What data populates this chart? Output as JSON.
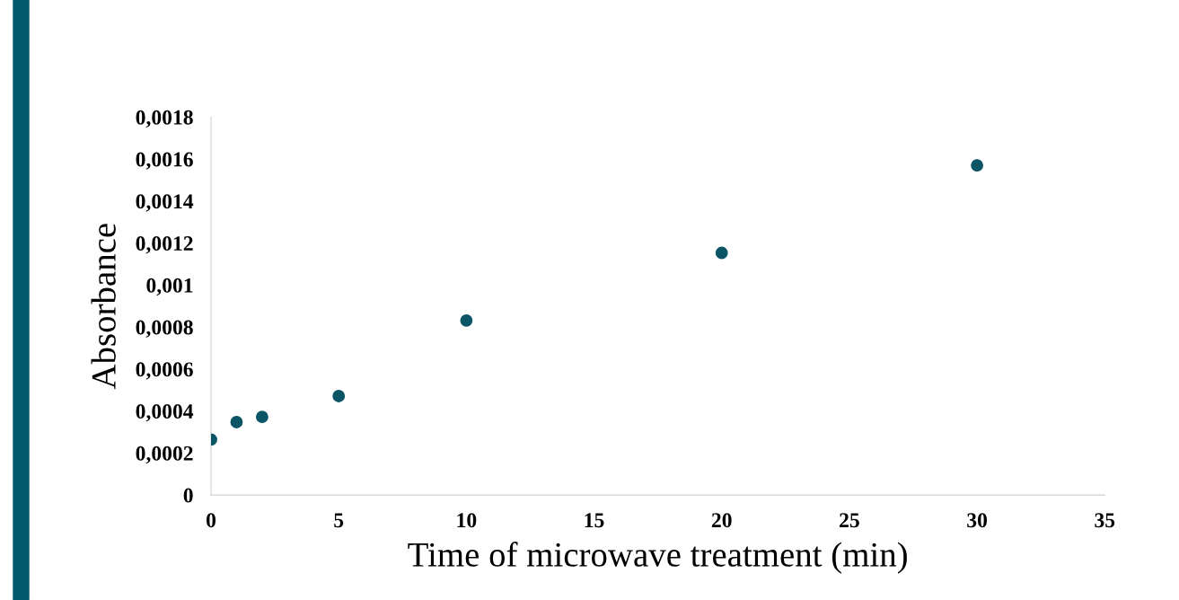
{
  "chart_data": {
    "type": "scatter",
    "xlabel": "Time of microwave treatment (min)",
    "ylabel": "Absorbance",
    "x": [
      0,
      1,
      2,
      5,
      10,
      20,
      30
    ],
    "series": [
      {
        "color": "#0b5566",
        "values": [
          0.000264,
          0.000347,
          0.000372,
          0.000471,
          0.000831,
          0.001153,
          0.00157
        ]
      }
    ],
    "xlim": [
      0,
      35
    ],
    "xticks": [
      0,
      5,
      10,
      15,
      20,
      25,
      30,
      35
    ],
    "ylim": [
      0,
      0.0018
    ],
    "yticks": [
      0,
      {
        "value": 0.0002,
        "label": "0,0002"
      },
      {
        "value": 0.0004,
        "label": "0,0004"
      },
      {
        "value": 0.0006,
        "label": "0,0006"
      },
      {
        "value": 0.0008,
        "label": "0,0008"
      },
      {
        "value": 0.001,
        "label": "0,001"
      },
      {
        "value": 0.0012,
        "label": "0,0012"
      },
      {
        "value": 0.0014,
        "label": "0,0014"
      },
      {
        "value": 0.0016,
        "label": "0,0016"
      },
      {
        "value": 0.0018,
        "label": "0,0018"
      }
    ],
    "marker": "circle",
    "grid": false,
    "legend": false
  }
}
